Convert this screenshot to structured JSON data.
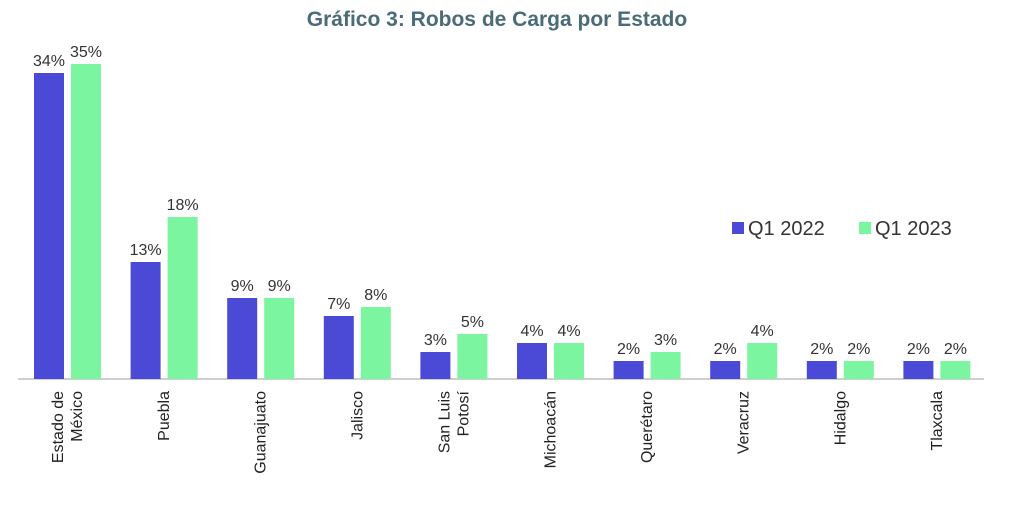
{
  "chart_data": {
    "type": "bar",
    "title": "Gráfico 3: Robos de Carga por Estado",
    "categories": [
      [
        "Estado de",
        "México"
      ],
      [
        "Puebla"
      ],
      [
        "Guanajuato"
      ],
      [
        "Jalisco"
      ],
      [
        "San Luis",
        "Potosí"
      ],
      [
        "Michoacán"
      ],
      [
        "Querétaro"
      ],
      [
        "Veracruz"
      ],
      [
        "Hidalgo"
      ],
      [
        "Tlaxcala"
      ]
    ],
    "series": [
      {
        "name": "Q1 2022",
        "color": "#4a4ad6",
        "values": [
          34,
          13,
          9,
          7,
          3,
          4,
          2,
          2,
          2,
          2
        ],
        "labels": [
          "34%",
          "13%",
          "9%",
          "7%",
          "3%",
          "4%",
          "2%",
          "2%",
          "2%",
          "2%"
        ]
      },
      {
        "name": "Q1 2023",
        "color": "#7cf5a0",
        "values": [
          35,
          18,
          9,
          8,
          5,
          4,
          3,
          4,
          2,
          2
        ],
        "labels": [
          "35%",
          "18%",
          "9%",
          "8%",
          "5%",
          "4%",
          "3%",
          "4%",
          "2%",
          "2%"
        ]
      }
    ],
    "ylim": [
      0,
      35
    ],
    "legend": "right",
    "grid": false
  }
}
